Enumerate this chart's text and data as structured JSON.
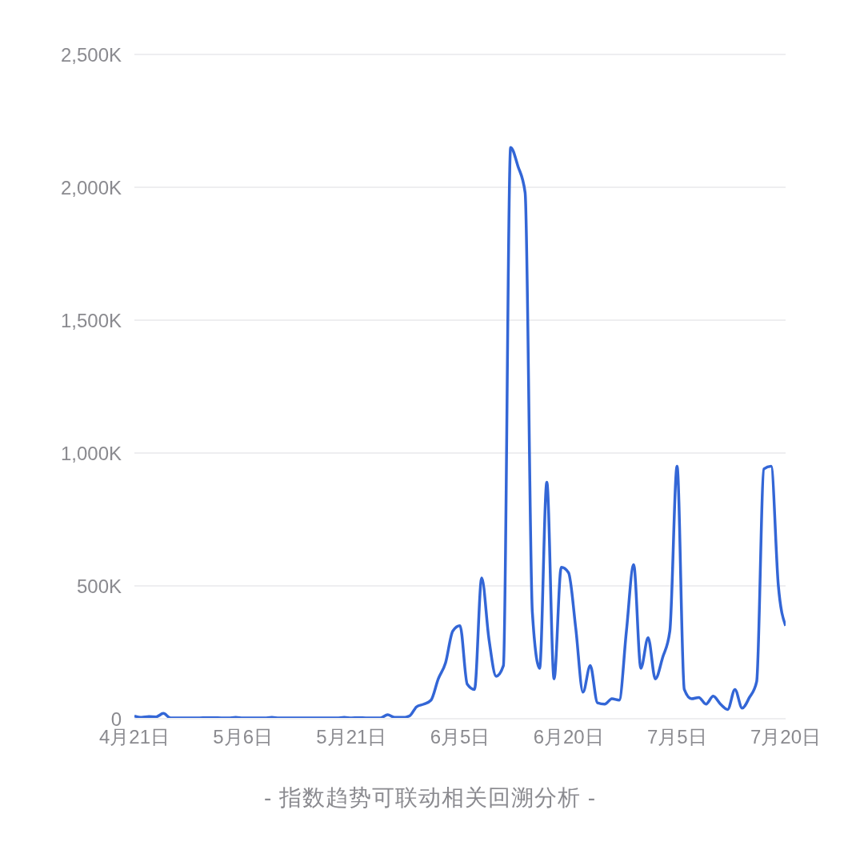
{
  "chart_data": {
    "type": "line",
    "x": [
      "--04-21",
      "--04-22",
      "--04-23",
      "--04-24",
      "--04-25",
      "--04-26",
      "--04-27",
      "--04-28",
      "--04-29",
      "--04-30",
      "--05-01",
      "--05-02",
      "--05-03",
      "--05-04",
      "--05-05",
      "--05-06",
      "--05-07",
      "--05-08",
      "--05-09",
      "--05-10",
      "--05-11",
      "--05-12",
      "--05-13",
      "--05-14",
      "--05-15",
      "--05-16",
      "--05-17",
      "--05-18",
      "--05-19",
      "--05-20",
      "--05-21",
      "--05-22",
      "--05-23",
      "--05-24",
      "--05-25",
      "--05-26",
      "--05-27",
      "--05-28",
      "--05-29",
      "--05-30",
      "--05-31",
      "--06-01",
      "--06-02",
      "--06-03",
      "--06-04",
      "--06-05",
      "--06-06",
      "--06-07",
      "--06-08",
      "--06-09",
      "--06-10",
      "--06-11",
      "--06-12",
      "--06-13",
      "--06-14",
      "--06-15",
      "--06-16",
      "--06-17",
      "--06-18",
      "--06-19",
      "--06-20",
      "--06-21",
      "--06-22",
      "--06-23",
      "--06-24",
      "--06-25",
      "--06-26",
      "--06-27",
      "--06-28",
      "--06-29",
      "--06-30",
      "--07-01",
      "--07-02",
      "--07-03",
      "--07-04",
      "--07-05",
      "--07-06",
      "--07-07",
      "--07-08",
      "--07-09",
      "--07-10",
      "--07-11",
      "--07-12",
      "--07-13",
      "--07-14",
      "--07-15",
      "--07-16",
      "--07-17",
      "--07-18",
      "--07-19",
      "--07-20"
    ],
    "series": [
      {
        "color": "#3366d6",
        "values": [
          10000,
          5000,
          8000,
          7000,
          20000,
          3000,
          3000,
          3000,
          3000,
          3000,
          4000,
          4000,
          3000,
          3000,
          5000,
          3000,
          3000,
          3000,
          3000,
          5000,
          3000,
          3000,
          3000,
          3000,
          3000,
          3000,
          3000,
          3000,
          3000,
          5000,
          3000,
          4000,
          3000,
          3000,
          3000,
          15000,
          5000,
          5000,
          10000,
          45000,
          55000,
          70000,
          150000,
          210000,
          330000,
          350000,
          130000,
          110000,
          530000,
          300000,
          160000,
          200000,
          2150000,
          2080000,
          1980000,
          400000,
          190000,
          890000,
          150000,
          570000,
          550000,
          340000,
          100000,
          200000,
          60000,
          55000,
          75000,
          70000,
          330000,
          580000,
          190000,
          305000,
          150000,
          230000,
          330000,
          950000,
          110000,
          75000,
          80000,
          55000,
          85000,
          55000,
          35000,
          110000,
          40000,
          80000,
          140000,
          940000,
          950000,
          500000,
          350000
        ]
      }
    ],
    "xlim": [
      "--04-21",
      "--07-20"
    ],
    "xticks": [
      {
        "value": "--04-21",
        "label": "4月21日"
      },
      {
        "value": "--05-06",
        "label": "5月6日"
      },
      {
        "value": "--05-21",
        "label": "5月21日"
      },
      {
        "value": "--06-05",
        "label": "6月5日"
      },
      {
        "value": "--06-20",
        "label": "6月20日"
      },
      {
        "value": "--07-05",
        "label": "7月5日"
      },
      {
        "value": "--07-20",
        "label": "7月20日"
      }
    ],
    "ylim": [
      0,
      2500000
    ],
    "yticks": [
      {
        "value": 0,
        "label": "0"
      },
      {
        "value": 500000,
        "label": "500K"
      },
      {
        "value": 1000000,
        "label": "1,000K"
      },
      {
        "value": 1500000,
        "label": "1,500K"
      },
      {
        "value": 2000000,
        "label": "2,000K"
      },
      {
        "value": 2500000,
        "label": "2,500K"
      }
    ],
    "grid": "y",
    "legend": false,
    "marker": "none",
    "line_style": "solid",
    "annotations": [
      "- 指数趋势可联动相关回溯分析 -"
    ]
  }
}
